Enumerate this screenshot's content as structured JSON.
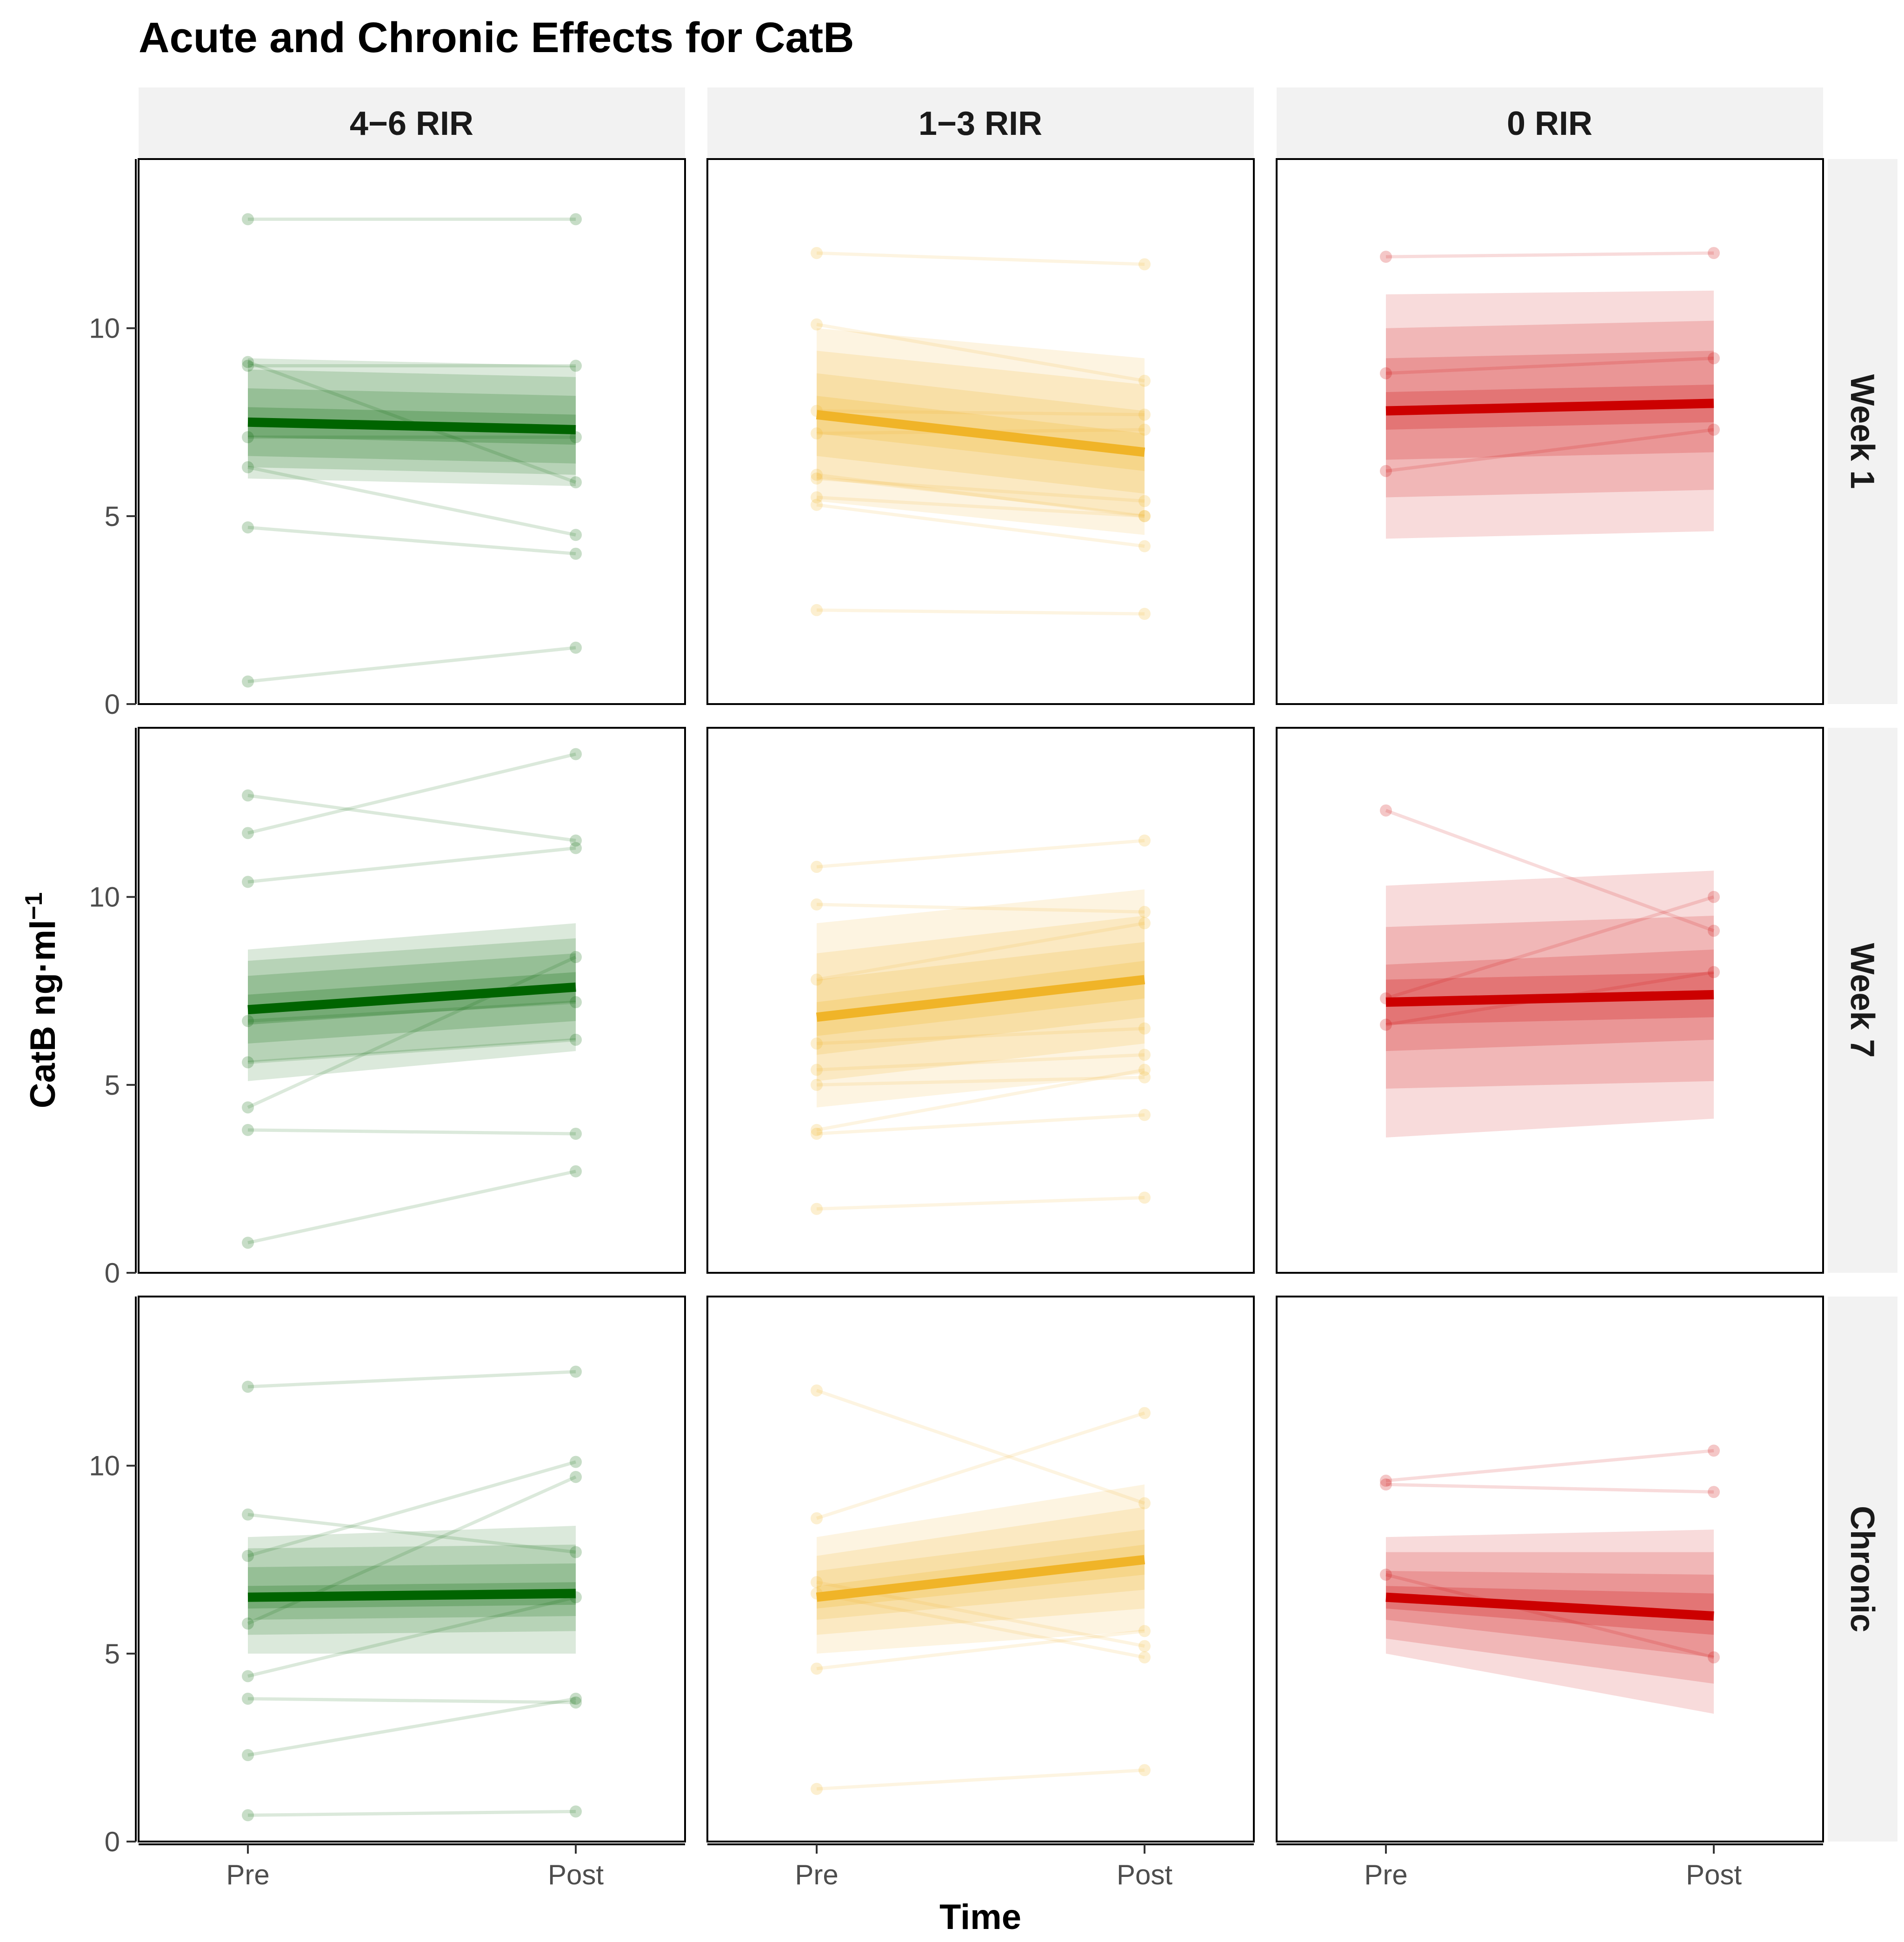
{
  "chart_data": {
    "type": "line",
    "title": "Acute and Chronic Effects for CatB",
    "xlabel": "Time",
    "ylabel": "CatB ng·ml",
    "ylabel_superscript": "−1",
    "ylim": [
      0,
      14.5
    ],
    "yticks": [
      0,
      5,
      10
    ],
    "x_categories": [
      "Pre",
      "Post"
    ],
    "column_facets": [
      "4−6 RIR",
      "1−3 RIR",
      "0 RIR"
    ],
    "row_facets": [
      "Week 1",
      "Week 7",
      "Chronic"
    ],
    "colors": {
      "4−6 RIR": "#006400",
      "1−3 RIR": "#F0B428",
      "0 RIR": "#CC0000"
    },
    "panels": [
      {
        "row": "Week 1",
        "col": "4−6 RIR",
        "mean": [
          7.5,
          7.3
        ],
        "bands": [
          [
            [
              7.1,
              7.9
            ],
            [
              6.9,
              7.7
            ]
          ],
          [
            [
              6.6,
              8.4
            ],
            [
              6.4,
              8.2
            ]
          ],
          [
            [
              6.3,
              8.9
            ],
            [
              6.1,
              8.7
            ]
          ],
          [
            [
              6.0,
              9.2
            ],
            [
              5.8,
              9.0
            ]
          ]
        ],
        "subjects": [
          [
            12.9,
            12.9
          ],
          [
            9.0,
            9.0
          ],
          [
            9.1,
            5.9
          ],
          [
            7.1,
            7.1
          ],
          [
            6.3,
            4.5
          ],
          [
            4.7,
            4.0
          ],
          [
            0.6,
            1.5
          ]
        ]
      },
      {
        "row": "Week 1",
        "col": "1−3 RIR",
        "mean": [
          7.7,
          6.7
        ],
        "bands": [
          [
            [
              7.2,
              8.2
            ],
            [
              6.2,
              7.2
            ]
          ],
          [
            [
              6.6,
              8.8
            ],
            [
              5.6,
              7.8
            ]
          ],
          [
            [
              6.0,
              9.4
            ],
            [
              5.0,
              8.5
            ]
          ],
          [
            [
              5.4,
              10.0
            ],
            [
              4.5,
              9.2
            ]
          ]
        ],
        "subjects": [
          [
            12.0,
            11.7
          ],
          [
            10.1,
            8.6
          ],
          [
            7.8,
            7.7
          ],
          [
            7.2,
            7.3
          ],
          [
            6.1,
            5.0
          ],
          [
            6.0,
            5.4
          ],
          [
            5.5,
            5.0
          ],
          [
            5.3,
            4.2
          ],
          [
            2.5,
            2.4
          ]
        ]
      },
      {
        "row": "Week 1",
        "col": "0 RIR",
        "mean": [
          7.8,
          8.0
        ],
        "bands": [
          [
            [
              7.3,
              8.3
            ],
            [
              7.5,
              8.5
            ]
          ],
          [
            [
              6.5,
              9.2
            ],
            [
              6.7,
              9.4
            ]
          ],
          [
            [
              5.5,
              10.0
            ],
            [
              5.7,
              10.2
            ]
          ],
          [
            [
              4.4,
              10.9
            ],
            [
              4.6,
              11.0
            ]
          ]
        ],
        "subjects": [
          [
            11.9,
            12.0
          ],
          [
            8.8,
            9.2
          ],
          [
            6.2,
            7.3
          ]
        ]
      },
      {
        "row": "Week 7",
        "col": "4−6 RIR",
        "mean": [
          7.0,
          7.6
        ],
        "bands": [
          [
            [
              6.6,
              7.4
            ],
            [
              7.2,
              8.0
            ]
          ],
          [
            [
              6.1,
              7.9
            ],
            [
              6.7,
              8.5
            ]
          ],
          [
            [
              5.6,
              8.3
            ],
            [
              6.2,
              8.9
            ]
          ],
          [
            [
              5.1,
              8.6
            ],
            [
              5.9,
              9.3
            ]
          ]
        ],
        "subjects": [
          [
            12.7,
            11.5
          ],
          [
            11.7,
            13.8
          ],
          [
            10.4,
            11.3
          ],
          [
            6.7,
            7.2
          ],
          [
            5.6,
            6.2
          ],
          [
            4.4,
            8.4
          ],
          [
            3.8,
            3.7
          ],
          [
            0.8,
            2.7
          ]
        ]
      },
      {
        "row": "Week 7",
        "col": "1−3 RIR",
        "mean": [
          6.8,
          7.8
        ],
        "bands": [
          [
            [
              6.3,
              7.2
            ],
            [
              7.3,
              8.3
            ]
          ],
          [
            [
              5.8,
              7.8
            ],
            [
              6.8,
              8.8
            ]
          ],
          [
            [
              5.1,
              8.5
            ],
            [
              6.1,
              9.5
            ]
          ],
          [
            [
              4.4,
              9.3
            ],
            [
              5.3,
              10.2
            ]
          ]
        ],
        "subjects": [
          [
            10.8,
            11.5
          ],
          [
            9.8,
            9.6
          ],
          [
            7.8,
            9.3
          ],
          [
            6.1,
            6.5
          ],
          [
            5.4,
            5.8
          ],
          [
            5.0,
            5.2
          ],
          [
            3.7,
            4.2
          ],
          [
            3.8,
            5.4
          ],
          [
            1.7,
            2.0
          ]
        ]
      },
      {
        "row": "Week 7",
        "col": "0 RIR",
        "mean": [
          7.2,
          7.4
        ],
        "bands": [
          [
            [
              6.6,
              7.8
            ],
            [
              6.8,
              8.0
            ]
          ],
          [
            [
              5.9,
              8.2
            ],
            [
              6.2,
              8.6
            ]
          ],
          [
            [
              4.9,
              9.2
            ],
            [
              5.1,
              9.5
            ]
          ],
          [
            [
              3.6,
              10.3
            ],
            [
              4.1,
              10.7
            ]
          ]
        ],
        "subjects": [
          [
            12.3,
            9.1
          ],
          [
            7.3,
            10.0
          ],
          [
            6.6,
            8.0
          ]
        ]
      },
      {
        "row": "Chronic",
        "col": "4−6 RIR",
        "mean": [
          6.5,
          6.6
        ],
        "bands": [
          [
            [
              6.2,
              6.8
            ],
            [
              6.3,
              6.9
            ]
          ],
          [
            [
              5.9,
              7.3
            ],
            [
              6.0,
              7.4
            ]
          ],
          [
            [
              5.5,
              7.8
            ],
            [
              5.6,
              7.9
            ]
          ],
          [
            [
              5.0,
              8.1
            ],
            [
              5.0,
              8.4
            ]
          ]
        ],
        "subjects": [
          [
            12.1,
            12.5
          ],
          [
            8.7,
            7.7
          ],
          [
            7.6,
            10.1
          ],
          [
            5.8,
            9.7
          ],
          [
            4.4,
            6.5
          ],
          [
            3.8,
            3.7
          ],
          [
            2.3,
            3.8
          ],
          [
            0.7,
            0.8
          ]
        ]
      },
      {
        "row": "Chronic",
        "col": "1−3 RIR",
        "mean": [
          6.5,
          7.5
        ],
        "bands": [
          [
            [
              6.2,
              6.8
            ],
            [
              7.1,
              7.9
            ]
          ],
          [
            [
              5.9,
              7.2
            ],
            [
              6.7,
              8.3
            ]
          ],
          [
            [
              5.5,
              7.6
            ],
            [
              6.2,
              8.9
            ]
          ],
          [
            [
              5.0,
              8.1
            ],
            [
              5.6,
              9.5
            ]
          ]
        ],
        "subjects": [
          [
            12.0,
            9.0
          ],
          [
            8.6,
            11.4
          ],
          [
            6.9,
            5.2
          ],
          [
            6.6,
            4.9
          ],
          [
            4.6,
            5.6
          ],
          [
            1.4,
            1.9
          ]
        ]
      },
      {
        "row": "Chronic",
        "col": "0 RIR",
        "mean": [
          6.5,
          6.0
        ],
        "bands": [
          [
            [
              6.2,
              6.8
            ],
            [
              5.5,
              6.6
            ]
          ],
          [
            [
              5.9,
              7.2
            ],
            [
              4.9,
              7.1
            ]
          ],
          [
            [
              5.4,
              7.7
            ],
            [
              4.2,
              7.7
            ]
          ],
          [
            [
              5.0,
              8.1
            ],
            [
              3.4,
              8.3
            ]
          ]
        ],
        "subjects": [
          [
            9.6,
            10.4
          ],
          [
            9.5,
            9.3
          ],
          [
            7.1,
            4.9
          ]
        ]
      }
    ]
  }
}
